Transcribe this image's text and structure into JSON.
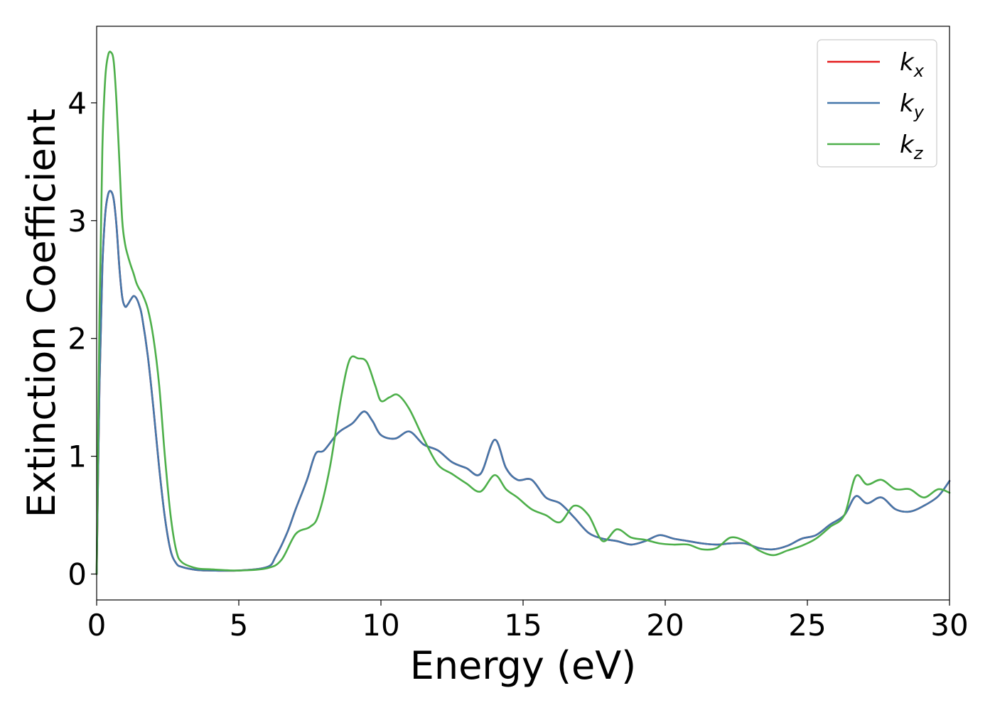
{
  "chart_data": {
    "type": "line",
    "title": "",
    "xlabel": "Energy (eV)",
    "ylabel": "Extinction Coefficient",
    "xlim": [
      0,
      30
    ],
    "ylim": [
      -0.22,
      4.65
    ],
    "xticks": [
      0,
      5,
      10,
      15,
      20,
      25,
      30
    ],
    "yticks": [
      0,
      1,
      2,
      3,
      4
    ],
    "grid": false,
    "legend_position": "top-right",
    "series": [
      {
        "name": "k_x",
        "base": "k",
        "sub": "x",
        "color": "#e41a1c",
        "x": [
          0,
          0.1,
          0.2,
          0.3,
          0.4,
          0.5,
          0.6,
          0.7,
          0.8,
          0.9,
          1.0,
          1.1,
          1.2,
          1.3,
          1.4,
          1.5,
          1.6,
          1.8,
          2.0,
          2.2,
          2.4,
          2.6,
          2.8,
          3.0,
          3.5,
          4,
          5,
          6,
          6.3,
          6.7,
          7.0,
          7.4,
          7.7,
          8.0,
          8.5,
          9.0,
          9.4,
          9.7,
          10.0,
          10.5,
          11.0,
          11.5,
          12.0,
          12.5,
          13.0,
          13.5,
          14.0,
          14.4,
          14.8,
          15.3,
          15.8,
          16.3,
          16.8,
          17.3,
          17.8,
          18.3,
          18.8,
          19.3,
          19.8,
          20.3,
          20.8,
          21.3,
          21.8,
          22.3,
          22.8,
          23.3,
          23.8,
          24.3,
          24.8,
          25.3,
          25.8,
          26.3,
          26.7,
          27.1,
          27.6,
          28.1,
          28.6,
          29.1,
          29.6,
          30
        ],
        "y": [
          0,
          1.6,
          2.6,
          3.05,
          3.22,
          3.25,
          3.18,
          2.95,
          2.6,
          2.35,
          2.27,
          2.29,
          2.33,
          2.36,
          2.34,
          2.28,
          2.18,
          1.85,
          1.4,
          0.9,
          0.48,
          0.2,
          0.09,
          0.06,
          0.035,
          0.03,
          0.03,
          0.06,
          0.15,
          0.35,
          0.55,
          0.8,
          1.02,
          1.05,
          1.2,
          1.28,
          1.38,
          1.3,
          1.18,
          1.15,
          1.21,
          1.1,
          1.05,
          0.95,
          0.9,
          0.85,
          1.14,
          0.9,
          0.8,
          0.8,
          0.65,
          0.6,
          0.48,
          0.35,
          0.3,
          0.28,
          0.25,
          0.28,
          0.33,
          0.3,
          0.28,
          0.26,
          0.25,
          0.26,
          0.26,
          0.22,
          0.21,
          0.24,
          0.3,
          0.33,
          0.42,
          0.5,
          0.66,
          0.6,
          0.65,
          0.55,
          0.53,
          0.58,
          0.66,
          0.79
        ]
      },
      {
        "name": "k_y",
        "base": "k",
        "sub": "y",
        "color": "#4477aa",
        "x": [
          0,
          0.1,
          0.2,
          0.3,
          0.4,
          0.5,
          0.6,
          0.7,
          0.8,
          0.9,
          1.0,
          1.1,
          1.2,
          1.3,
          1.4,
          1.5,
          1.6,
          1.8,
          2.0,
          2.2,
          2.4,
          2.6,
          2.8,
          3.0,
          3.5,
          4,
          5,
          6,
          6.3,
          6.7,
          7.0,
          7.4,
          7.7,
          8.0,
          8.5,
          9.0,
          9.4,
          9.7,
          10.0,
          10.5,
          11.0,
          11.5,
          12.0,
          12.5,
          13.0,
          13.5,
          14.0,
          14.4,
          14.8,
          15.3,
          15.8,
          16.3,
          16.8,
          17.3,
          17.8,
          18.3,
          18.8,
          19.3,
          19.8,
          20.3,
          20.8,
          21.3,
          21.8,
          22.3,
          22.8,
          23.3,
          23.8,
          24.3,
          24.8,
          25.3,
          25.8,
          26.3,
          26.7,
          27.1,
          27.6,
          28.1,
          28.6,
          29.1,
          29.6,
          30
        ],
        "y": [
          0,
          1.6,
          2.6,
          3.05,
          3.22,
          3.25,
          3.18,
          2.95,
          2.6,
          2.35,
          2.27,
          2.29,
          2.33,
          2.36,
          2.34,
          2.28,
          2.18,
          1.85,
          1.4,
          0.9,
          0.48,
          0.2,
          0.09,
          0.06,
          0.035,
          0.03,
          0.03,
          0.06,
          0.15,
          0.35,
          0.55,
          0.8,
          1.02,
          1.05,
          1.2,
          1.28,
          1.38,
          1.3,
          1.18,
          1.15,
          1.21,
          1.1,
          1.05,
          0.95,
          0.9,
          0.85,
          1.14,
          0.9,
          0.8,
          0.8,
          0.65,
          0.6,
          0.48,
          0.35,
          0.3,
          0.28,
          0.25,
          0.28,
          0.33,
          0.3,
          0.28,
          0.26,
          0.25,
          0.26,
          0.26,
          0.22,
          0.21,
          0.24,
          0.3,
          0.33,
          0.42,
          0.5,
          0.66,
          0.6,
          0.65,
          0.55,
          0.53,
          0.58,
          0.66,
          0.79
        ]
      },
      {
        "name": "k_z",
        "base": "k",
        "sub": "z",
        "color": "#4daf4a",
        "x": [
          0,
          0.1,
          0.2,
          0.3,
          0.4,
          0.5,
          0.6,
          0.7,
          0.8,
          0.9,
          1.0,
          1.1,
          1.2,
          1.3,
          1.4,
          1.5,
          1.6,
          1.8,
          2.0,
          2.2,
          2.4,
          2.6,
          2.8,
          3.0,
          3.5,
          4,
          5,
          6,
          6.5,
          7.0,
          7.5,
          7.8,
          8.2,
          8.6,
          8.9,
          9.2,
          9.5,
          9.8,
          10.0,
          10.3,
          10.6,
          11.0,
          11.5,
          12.0,
          12.5,
          13.0,
          13.5,
          14.0,
          14.4,
          14.8,
          15.3,
          15.8,
          16.3,
          16.8,
          17.3,
          17.8,
          18.3,
          18.8,
          19.3,
          19.8,
          20.3,
          20.8,
          21.3,
          21.8,
          22.3,
          22.8,
          23.3,
          23.8,
          24.3,
          24.8,
          25.3,
          25.8,
          26.3,
          26.7,
          27.1,
          27.6,
          28.1,
          28.6,
          29.1,
          29.6,
          30
        ],
        "y": [
          0,
          2.2,
          3.6,
          4.2,
          4.4,
          4.43,
          4.35,
          4.0,
          3.5,
          3.0,
          2.8,
          2.7,
          2.62,
          2.55,
          2.47,
          2.42,
          2.38,
          2.25,
          2.0,
          1.6,
          1.0,
          0.5,
          0.2,
          0.1,
          0.05,
          0.04,
          0.03,
          0.05,
          0.12,
          0.34,
          0.4,
          0.5,
          0.9,
          1.5,
          1.82,
          1.83,
          1.8,
          1.6,
          1.47,
          1.5,
          1.52,
          1.4,
          1.15,
          0.93,
          0.85,
          0.77,
          0.7,
          0.84,
          0.72,
          0.65,
          0.55,
          0.5,
          0.44,
          0.58,
          0.5,
          0.28,
          0.38,
          0.31,
          0.29,
          0.26,
          0.25,
          0.25,
          0.21,
          0.22,
          0.31,
          0.28,
          0.2,
          0.16,
          0.2,
          0.24,
          0.3,
          0.4,
          0.5,
          0.83,
          0.76,
          0.8,
          0.72,
          0.72,
          0.65,
          0.72,
          0.69
        ]
      }
    ]
  }
}
